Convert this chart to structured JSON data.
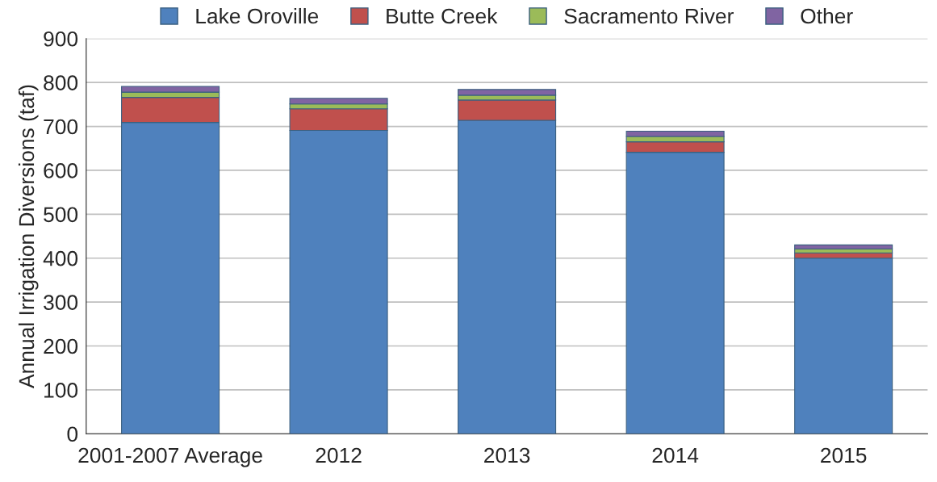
{
  "chart_data": {
    "type": "bar",
    "stacked": true,
    "ylabel": "Annual Irrigation Diversions (taf)",
    "categories": [
      "2001-2007 Average",
      "2012",
      "2013",
      "2014",
      "2015"
    ],
    "series": [
      {
        "name": "Lake Oroville",
        "color": "#4f81bd",
        "values": [
          709,
          691,
          714,
          641,
          400
        ]
      },
      {
        "name": "Butte Creek",
        "color": "#c0504d",
        "values": [
          57,
          49,
          46,
          24,
          12
        ]
      },
      {
        "name": "Sacramento River",
        "color": "#9bbb59",
        "values": [
          12,
          11,
          11,
          12,
          9
        ]
      },
      {
        "name": "Other",
        "color": "#8064a2",
        "values": [
          13,
          13,
          13,
          12,
          9
        ]
      }
    ],
    "ylim": [
      0,
      900
    ],
    "yticks": [
      0,
      100,
      200,
      300,
      400,
      500,
      600,
      700,
      800,
      900
    ],
    "grid": "y",
    "legend": "top"
  }
}
